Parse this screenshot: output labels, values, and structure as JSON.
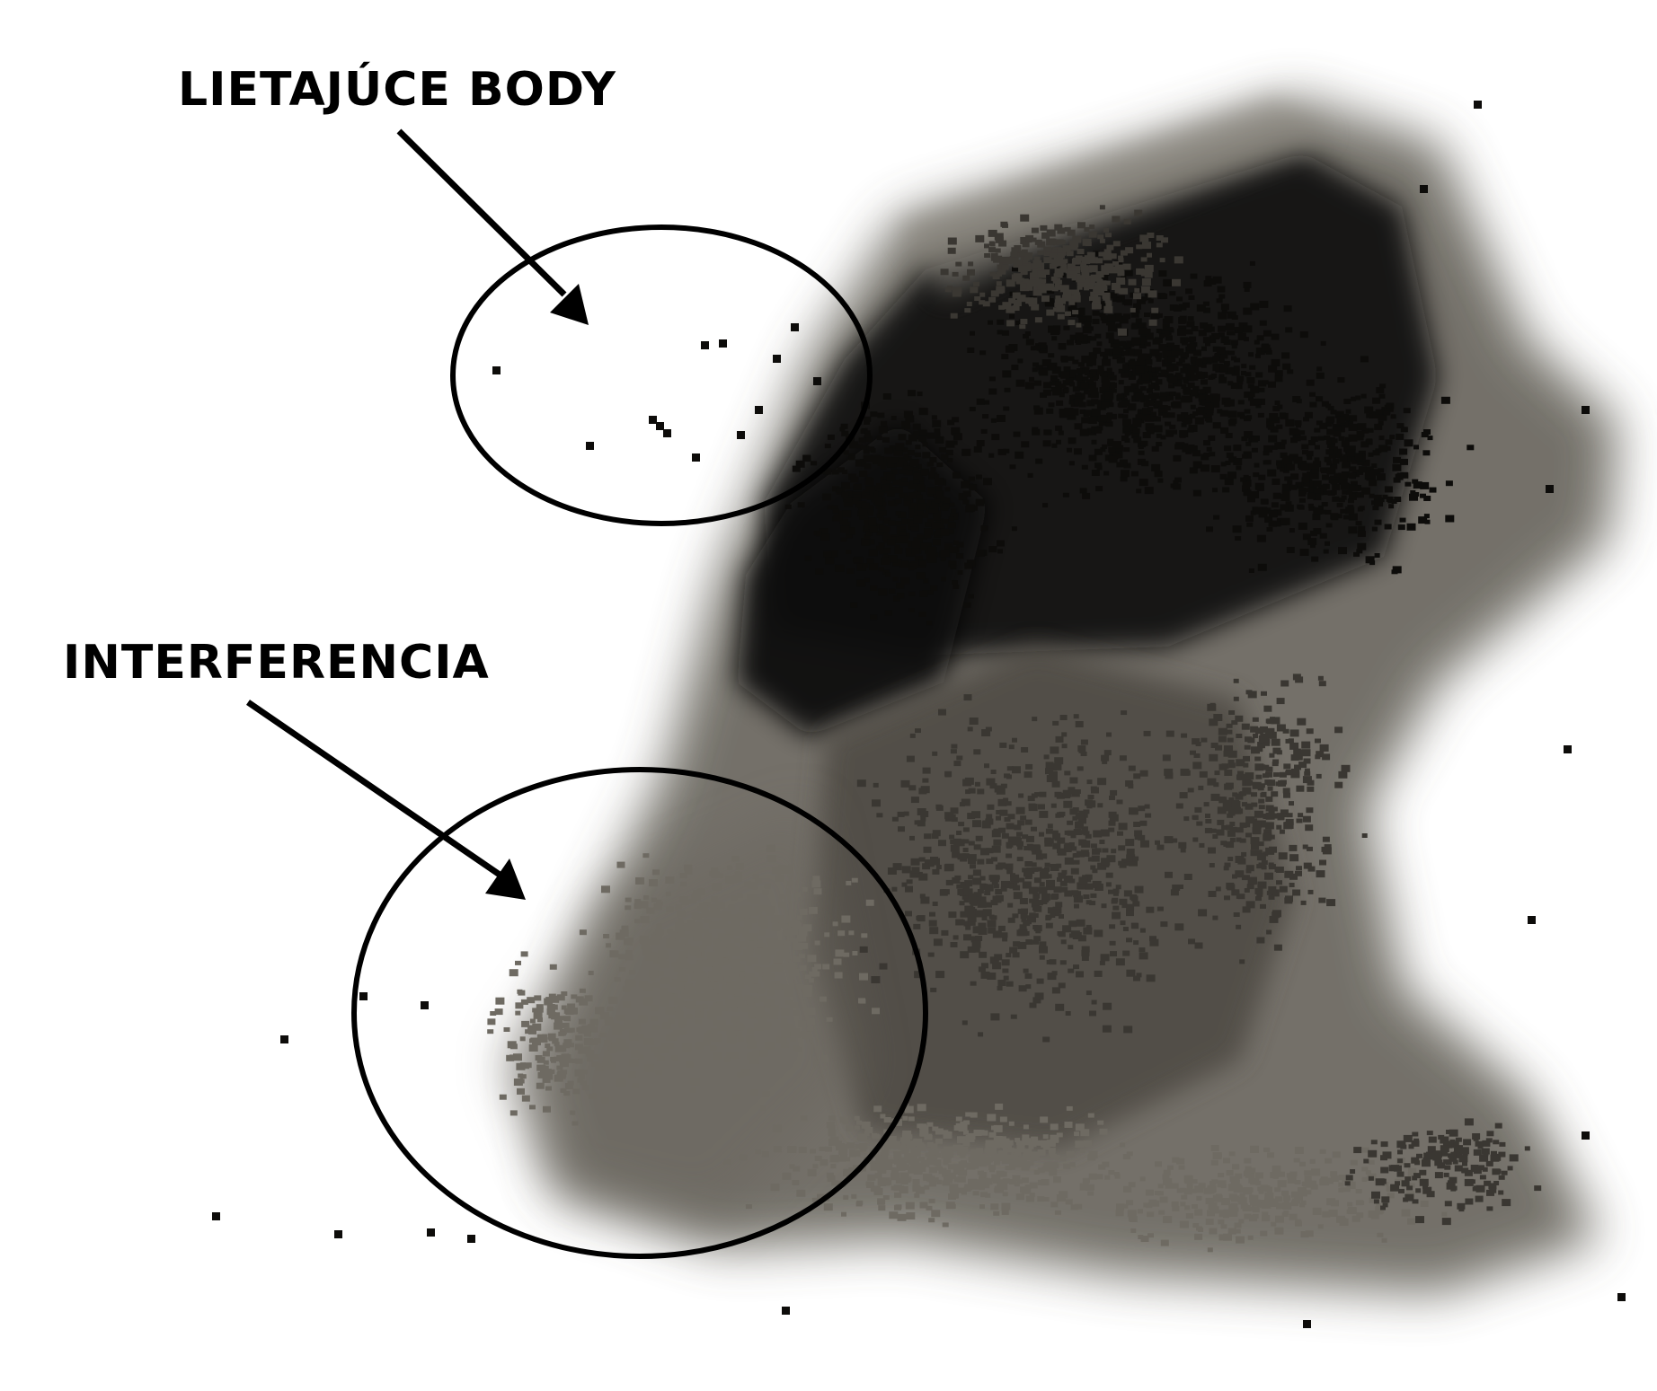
{
  "annotations": [
    {
      "id": "flying-points",
      "text": "LIETAJÚCE BODY"
    },
    {
      "id": "interference",
      "text": "INTERFERENCIA"
    }
  ],
  "colors": {
    "background": "#ffffff",
    "annotation": "#000000",
    "points_dark": "#0d0c0a",
    "points_mid": "#3a3732",
    "points_light": "#6e6a62"
  },
  "icons": {
    "arrow": "arrow-down-right-icon",
    "ellipse": "ellipse-highlight-icon"
  }
}
